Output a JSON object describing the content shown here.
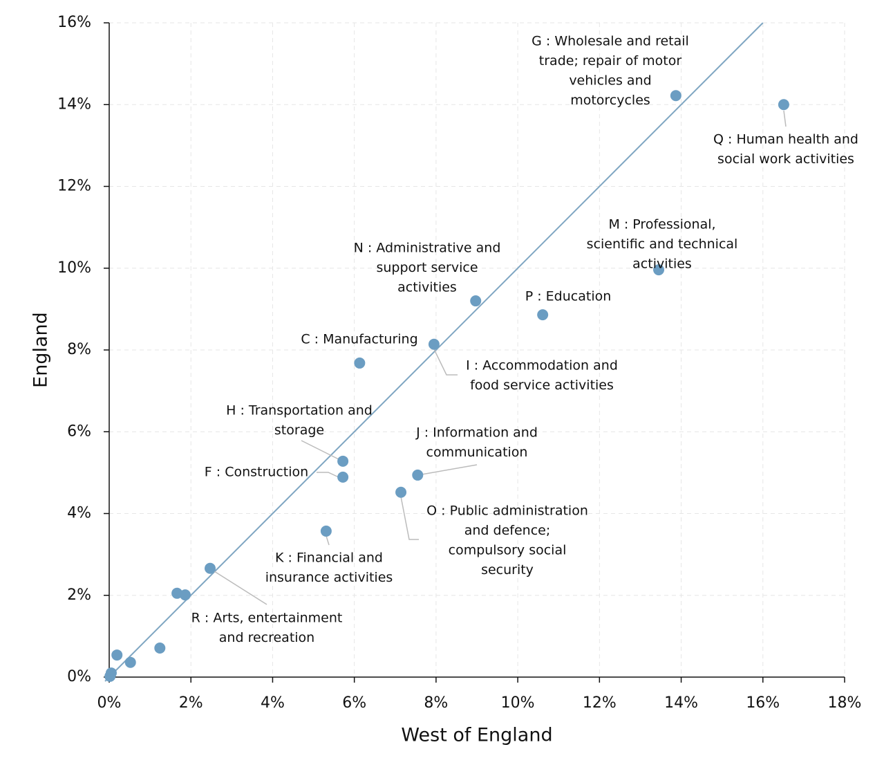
{
  "chart_data": {
    "type": "scatter",
    "x_label": "West of England",
    "y_label": "England",
    "color": "#6b9dc2",
    "x": [
      13.87,
      16.51,
      13.45,
      10.61,
      8.97,
      7.95,
      6.13,
      5.72,
      5.72,
      7.55,
      7.14,
      5.31,
      2.47,
      1.66,
      1.86,
      1.24,
      0.52,
      0.19,
      0.05,
      0.02
    ],
    "y": [
      14.22,
      14.0,
      9.96,
      8.86,
      9.2,
      8.14,
      7.68,
      5.28,
      4.89,
      4.94,
      4.52,
      3.57,
      2.66,
      2.05,
      2.01,
      0.71,
      0.36,
      0.54,
      0.1,
      0.02
    ],
    "labels": [
      [
        "G : Wholesale and retail",
        "trade; repair of motor",
        "vehicles and",
        "motorcycles"
      ],
      [
        "Q : Human health and",
        "social work activities"
      ],
      [
        "M : Professional,",
        "scientific and technical",
        "activities"
      ],
      [
        "P : Education"
      ],
      [
        "N : Administrative and",
        "support service",
        "activities"
      ],
      [
        "I : Accommodation and",
        "food service activities"
      ],
      [
        "C : Manufacturing"
      ],
      [
        "H : Transportation and",
        "storage"
      ],
      [
        "F : Construction"
      ],
      [
        "J : Information and",
        "communication"
      ],
      [
        "O : Public administration",
        "and defence;",
        "compulsory social",
        "security"
      ],
      [
        "K : Financial and",
        "insurance activities"
      ],
      [
        "R : Arts, entertainment",
        "and recreation"
      ],
      null,
      null,
      null,
      null,
      null,
      null,
      null
    ],
    "xlim": [
      0,
      18
    ],
    "ylim": [
      0,
      16
    ],
    "xticks": [
      {
        "value": 0,
        "label": "0%"
      },
      {
        "value": 2,
        "label": "2%"
      },
      {
        "value": 4,
        "label": "4%"
      },
      {
        "value": 6,
        "label": "6%"
      },
      {
        "value": 8,
        "label": "8%"
      },
      {
        "value": 10,
        "label": "10%"
      },
      {
        "value": 12,
        "label": "12%"
      },
      {
        "value": 14,
        "label": "14%"
      },
      {
        "value": 16,
        "label": "16%"
      },
      {
        "value": 18,
        "label": "18%"
      }
    ],
    "yticks": [
      {
        "value": 0,
        "label": "0%"
      },
      {
        "value": 2,
        "label": "2%"
      },
      {
        "value": 4,
        "label": "4%"
      },
      {
        "value": 6,
        "label": "6%"
      },
      {
        "value": 8,
        "label": "8%"
      },
      {
        "value": 10,
        "label": "10%"
      },
      {
        "value": 12,
        "label": "12%"
      },
      {
        "value": 14,
        "label": "14%"
      },
      {
        "value": 16,
        "label": "16%"
      }
    ],
    "grid": true
  }
}
